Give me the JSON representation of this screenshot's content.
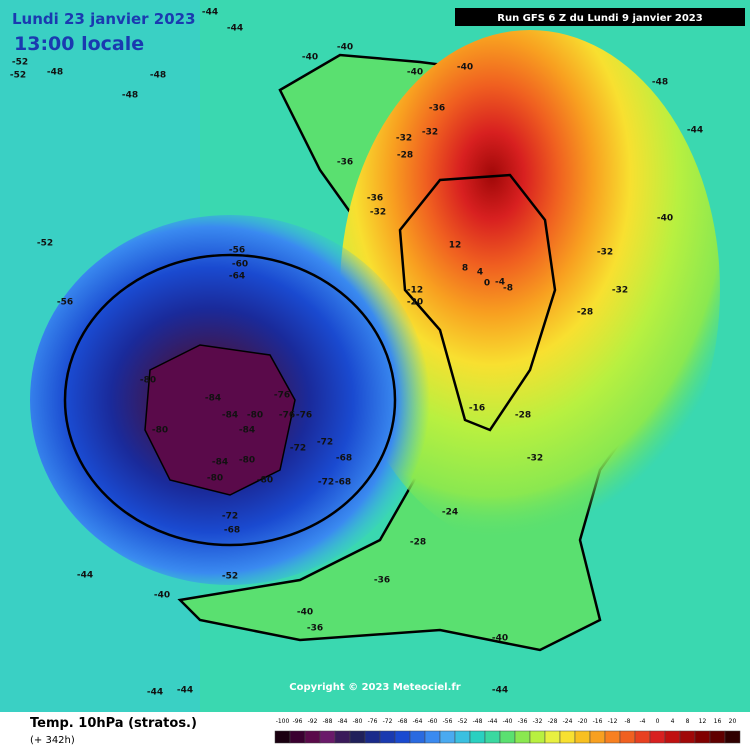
{
  "header": {
    "date": "Lundi 23 janvier 2023",
    "time": "13:00 locale",
    "run": "Run GFS 6 Z du Lundi 9 janvier 2023"
  },
  "footer": {
    "title": "Temp. 10hPa (stratos.)",
    "lead": "(+ 342h)",
    "copyright": "Copyright © 2023 Meteociel.fr"
  },
  "legend": {
    "ticks": [
      -100,
      -96,
      -92,
      -88,
      -84,
      -80,
      -76,
      -72,
      -68,
      -64,
      -60,
      -56,
      -52,
      -48,
      -44,
      -40,
      -36,
      -32,
      -28,
      -24,
      -20,
      -16,
      -12,
      -8,
      -4,
      0,
      4,
      8,
      12,
      16,
      20
    ],
    "colors": [
      "#1a0010",
      "#3a0030",
      "#5a0a4a",
      "#6a1a6a",
      "#3a1a5a",
      "#20205a",
      "#1a2a8a",
      "#1a3ab0",
      "#1a4ad0",
      "#2a6ae0",
      "#3a8af0",
      "#4aaaf0",
      "#3ac0e0",
      "#2ad0c0",
      "#3ad8a0",
      "#5ae070",
      "#8ae850",
      "#b8f040",
      "#e8f040",
      "#f8e030",
      "#f8c020",
      "#f8a020",
      "#f88020",
      "#f06020",
      "#e84020",
      "#d82020",
      "#c01010",
      "#a00808",
      "#800000",
      "#600000",
      "#300000"
    ]
  },
  "map": {
    "labels": [
      -52,
      -52,
      -48,
      -48,
      -48,
      -44,
      -44,
      -40,
      -40,
      -40,
      -40,
      -36,
      -32,
      -32,
      -28,
      -36,
      -36,
      -32,
      12,
      8,
      4,
      0,
      -4,
      -8,
      -16,
      -20,
      -12,
      -28,
      -32,
      -32,
      -32,
      -28,
      -40,
      -44,
      -48,
      -56,
      -60,
      -64,
      -56,
      -52,
      -80,
      -84,
      -84,
      -80,
      -76,
      -76,
      -76,
      -84,
      -80,
      -84,
      -80,
      -80,
      -80,
      -72,
      -72,
      -68,
      -72,
      -68,
      -72,
      -68,
      -52,
      -44,
      -40,
      -36,
      -40,
      -36,
      -28,
      -24,
      -40,
      -44,
      -44,
      -44
    ]
  }
}
